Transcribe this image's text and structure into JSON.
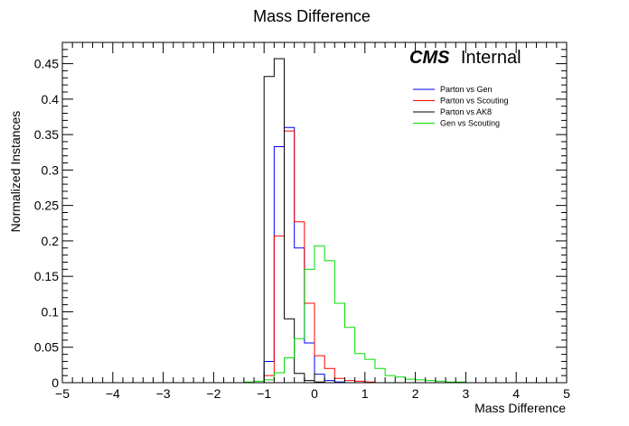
{
  "chart_data": {
    "type": "histogram",
    "title": "Mass Difference",
    "xlabel": "Mass Difference",
    "ylabel": "Normalized Instances",
    "xlim": [
      -5,
      5
    ],
    "ylim": [
      0,
      0.48
    ],
    "bin_width": 0.2,
    "xticks": [
      -5,
      -4,
      -3,
      -2,
      -1,
      0,
      1,
      2,
      3,
      4,
      5
    ],
    "xtick_labels": [
      "−5",
      "−4",
      "−3",
      "−2",
      "−1",
      "0",
      "1",
      "2",
      "3",
      "4",
      "5"
    ],
    "yticks": [
      0,
      0.05,
      0.1,
      0.15,
      0.2,
      0.25,
      0.3,
      0.35,
      0.4,
      0.45
    ],
    "ytick_labels": [
      "0",
      "0.05",
      "0.1",
      "0.15",
      "0.2",
      "0.25",
      "0.3",
      "0.35",
      "0.4",
      "0.45"
    ],
    "grid": false,
    "legend_position": "top-right",
    "annotation": {
      "bold": "CMS",
      "normal": "Internal"
    },
    "series": [
      {
        "name": "Parton vs Gen",
        "color": "#0000ff",
        "bins": [
          {
            "x": -1.0,
            "y": 0.03
          },
          {
            "x": -0.8,
            "y": 0.333
          },
          {
            "x": -0.6,
            "y": 0.36
          },
          {
            "x": -0.4,
            "y": 0.19
          },
          {
            "x": -0.2,
            "y": 0.056
          },
          {
            "x": 0.0,
            "y": 0.012
          },
          {
            "x": 0.2,
            "y": 0.003
          },
          {
            "x": 0.4,
            "y": 0.001
          }
        ]
      },
      {
        "name": "Parton vs Scouting",
        "color": "#ff0000",
        "bins": [
          {
            "x": -1.0,
            "y": 0.01
          },
          {
            "x": -0.8,
            "y": 0.207
          },
          {
            "x": -0.6,
            "y": 0.355
          },
          {
            "x": -0.4,
            "y": 0.227
          },
          {
            "x": -0.2,
            "y": 0.112
          },
          {
            "x": 0.0,
            "y": 0.038
          },
          {
            "x": 0.2,
            "y": 0.02
          },
          {
            "x": 0.4,
            "y": 0.006
          },
          {
            "x": 0.6,
            "y": 0.003
          },
          {
            "x": 0.8,
            "y": 0.002
          },
          {
            "x": 1.0,
            "y": 0.001
          }
        ]
      },
      {
        "name": "Parton vs AK8",
        "color": "#000000",
        "bins": [
          {
            "x": -1.0,
            "y": 0.432
          },
          {
            "x": -0.8,
            "y": 0.457
          },
          {
            "x": -0.6,
            "y": 0.09
          },
          {
            "x": -0.4,
            "y": 0.013
          },
          {
            "x": -0.2,
            "y": 0.003
          },
          {
            "x": 0.0,
            "y": 0.001
          }
        ]
      },
      {
        "name": "Gen vs Scouting",
        "color": "#00dd00",
        "bins": [
          {
            "x": -1.4,
            "y": 0.001
          },
          {
            "x": -1.2,
            "y": 0.002
          },
          {
            "x": -1.0,
            "y": 0.004
          },
          {
            "x": -0.8,
            "y": 0.014
          },
          {
            "x": -0.6,
            "y": 0.035
          },
          {
            "x": -0.4,
            "y": 0.062
          },
          {
            "x": -0.2,
            "y": 0.16
          },
          {
            "x": 0.0,
            "y": 0.193
          },
          {
            "x": 0.2,
            "y": 0.172
          },
          {
            "x": 0.4,
            "y": 0.112
          },
          {
            "x": 0.6,
            "y": 0.078
          },
          {
            "x": 0.8,
            "y": 0.041
          },
          {
            "x": 1.0,
            "y": 0.033
          },
          {
            "x": 1.2,
            "y": 0.02
          },
          {
            "x": 1.4,
            "y": 0.01
          },
          {
            "x": 1.6,
            "y": 0.008
          },
          {
            "x": 1.8,
            "y": 0.005
          },
          {
            "x": 2.0,
            "y": 0.004
          },
          {
            "x": 2.2,
            "y": 0.003
          },
          {
            "x": 2.4,
            "y": 0.002
          },
          {
            "x": 2.6,
            "y": 0.001
          },
          {
            "x": 2.8,
            "y": 0.001
          }
        ]
      }
    ]
  }
}
